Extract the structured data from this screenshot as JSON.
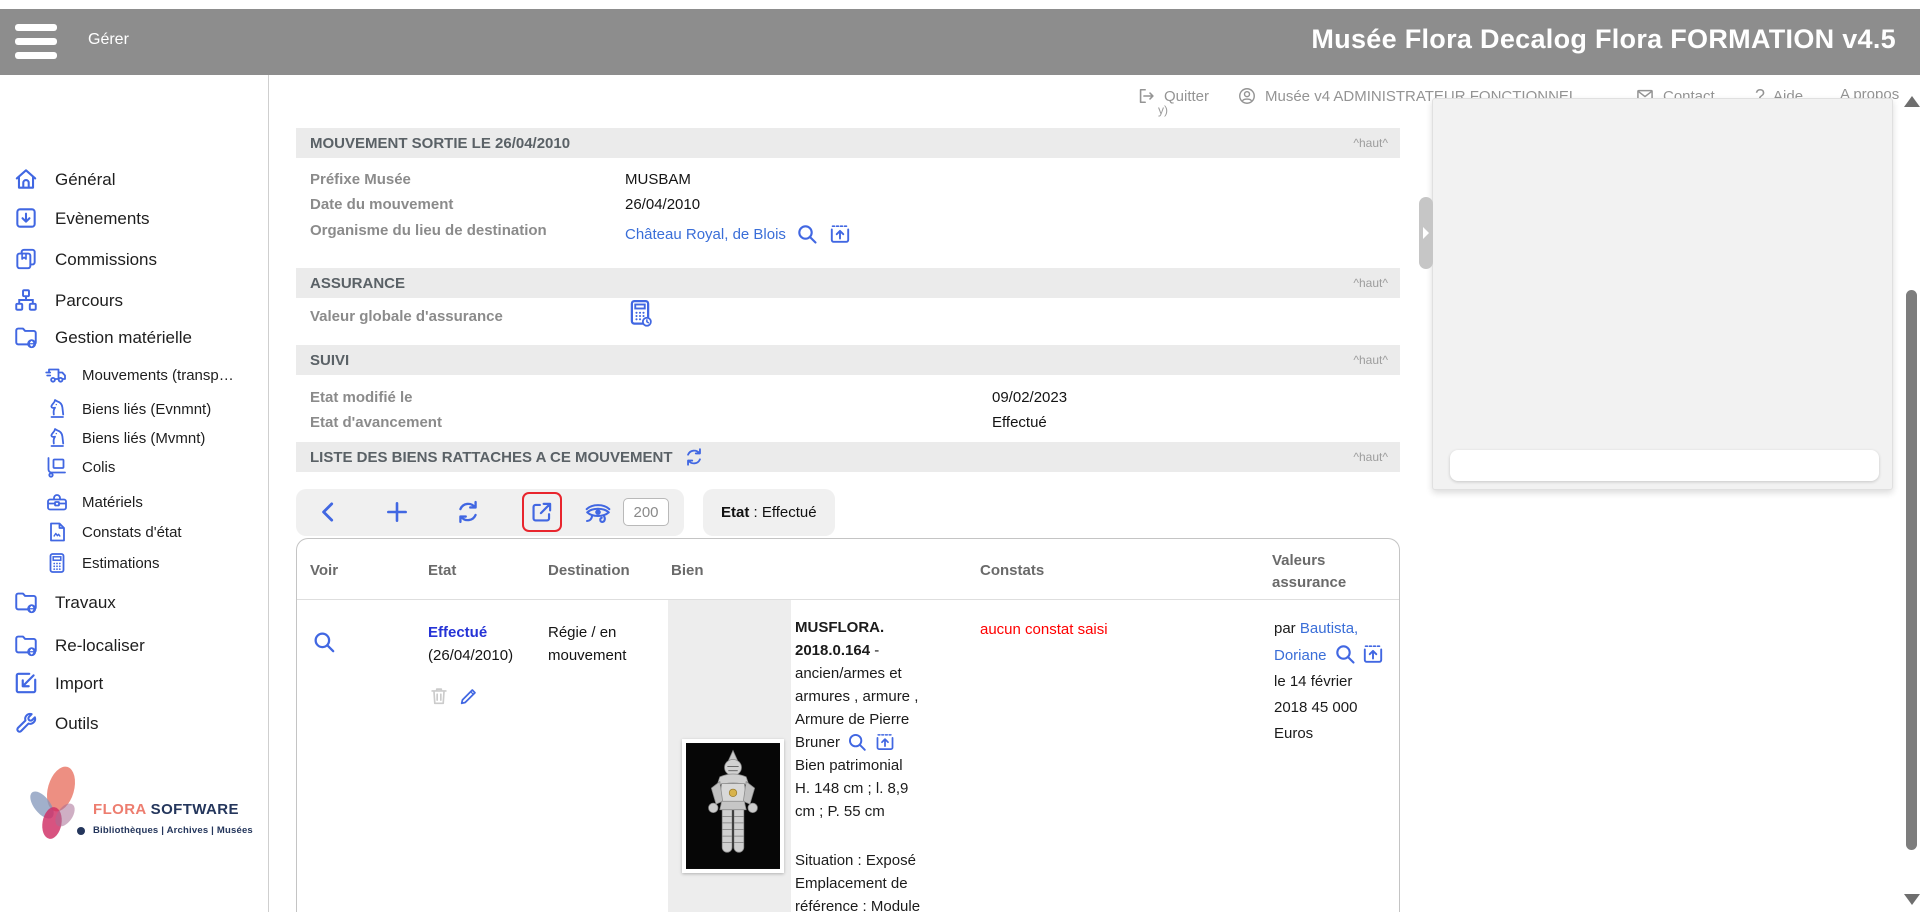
{
  "topbar": {
    "menu_label": "Gérer",
    "title": "Musée Flora Decalog Flora FORMATION v4.5"
  },
  "userbar": {
    "quit_label": "Quitter",
    "user_label": "Musée v4 ADMINISTRATEUR FONCTIONNEL",
    "contact_label": "Contact",
    "help_prefix": "?",
    "help_label": "Aide",
    "about_label": "A propos",
    "overflow_fragment": "y)"
  },
  "sidebar": {
    "items": [
      {
        "label": "Général",
        "icon": "home-icon",
        "level": 1
      },
      {
        "label": "Evènements",
        "icon": "box-arrow-down-icon",
        "level": 1
      },
      {
        "label": "Commissions",
        "icon": "documents-icon",
        "level": 1
      },
      {
        "label": "Parcours",
        "icon": "sitemap-icon",
        "level": 1
      },
      {
        "label": "Gestion matérielle",
        "icon": "folder-globe-icon",
        "level": 1
      },
      {
        "label": "Mouvements (transp…",
        "icon": "truck-icon",
        "level": 2
      },
      {
        "label": "Biens liés (Evnmnt)",
        "icon": "knight-icon",
        "level": 2
      },
      {
        "label": "Biens liés (Mvmnt)",
        "icon": "knight-icon",
        "level": 2
      },
      {
        "label": "Colis",
        "icon": "trolley-icon",
        "level": 2
      },
      {
        "label": "Matériels",
        "icon": "toolbox-icon",
        "level": 2
      },
      {
        "label": "Constats d'état",
        "icon": "document-signature-icon",
        "level": 2
      },
      {
        "label": "Estimations",
        "icon": "calculator-icon",
        "level": 2
      },
      {
        "label": "Travaux",
        "icon": "folder-globe-icon",
        "level": 1
      },
      {
        "label": "Re-localiser",
        "icon": "folder-globe-icon",
        "level": 1
      },
      {
        "label": "Import",
        "icon": "import-icon",
        "level": 1
      },
      {
        "label": "Outils",
        "icon": "wrench-icon",
        "level": 1
      }
    ]
  },
  "brand": {
    "flora": "FLORA",
    "software": " SOFTWARE",
    "tagline": "Bibliothèques | Archives | Musées"
  },
  "ui": {
    "top_link": "^haut^"
  },
  "sections": {
    "mouvement": {
      "title": "MOUVEMENT SORTIE LE 26/04/2010",
      "prefix_label": "Préfixe Musée",
      "prefix_value": "MUSBAM",
      "date_label": "Date du mouvement",
      "date_value": "26/04/2010",
      "org_label": "Organisme du lieu de destination",
      "org_value": "Château Royal, de Blois"
    },
    "assurance": {
      "title": "ASSURANCE",
      "value_label": "Valeur globale d'assurance"
    },
    "suivi": {
      "title": "SUIVI",
      "modified_label": "Etat modifié le",
      "modified_value": "09/02/2023",
      "progress_label": "Etat d'avancement",
      "progress_value": "Effectué"
    },
    "liste": {
      "title": "LISTE DES BIENS RATTACHES A CE MOUVEMENT"
    }
  },
  "toolbar": {
    "count_value": "200",
    "filter_label": "Etat",
    "filter_rest": " : Effectué"
  },
  "table": {
    "columns": [
      "Voir",
      "Etat",
      "Destination",
      "Bien",
      "Constats",
      "Valeurs assurance"
    ],
    "row": {
      "etat_status": "Effectué",
      "etat_date": "(26/04/2010)",
      "destination": "Régie / en mouvement",
      "bien_ref": "MUSFLORA. 2018.0.164",
      "bien_sep": " - ",
      "bien_desc": "ancien/armes et armures , armure , Armure de Pierre Bruner",
      "bien_type": "Bien patrimonial",
      "bien_dims": "H. 148 cm ; l. 8,9 cm ; P. 55 cm",
      "bien_situation": "Situation : Exposé",
      "bien_location": "Emplacement de référence : Module",
      "constats": "aucun constat saisi",
      "assur_par": "par ",
      "assur_name": "Bautista, Doriane",
      "assur_date": " le 14 février 2018",
      "assur_amount": "45 000 Euros"
    }
  },
  "colors": {
    "topbar_gray": "#8d8d8d",
    "icon_blue": "#4167e2",
    "link_blue": "#3a6ed8",
    "status_blue": "#2533d6",
    "alert_red": "#e8252d",
    "text_red": "#ff0000"
  }
}
